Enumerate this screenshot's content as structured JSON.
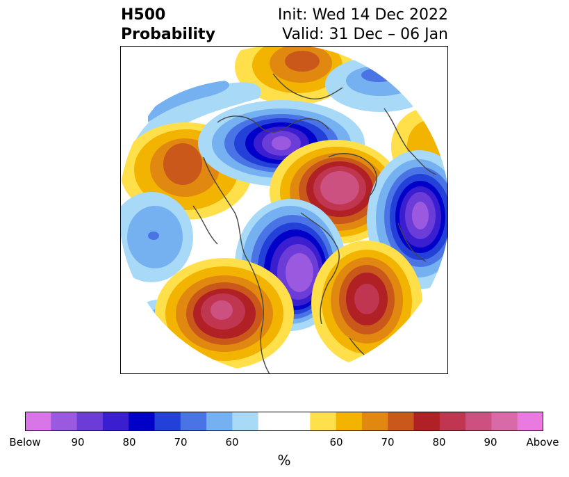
{
  "title": {
    "left_line1": "H500",
    "left_line2": "Probability",
    "right_line1": "Init: Wed 14 Dec 2022",
    "right_line2": "Valid: 31 Dec – 06 Jan"
  },
  "colorbar": {
    "colors": [
      "#d876e8",
      "#9b59e0",
      "#6b3cd8",
      "#3a1ed0",
      "#0000c8",
      "#2340d8",
      "#4a73e6",
      "#75b0f0",
      "#a8daf8",
      "#ffffff",
      "#ffffff",
      "#ffe04a",
      "#f2b400",
      "#e08810",
      "#c9581a",
      "#b02025",
      "#c03550",
      "#cc5080",
      "#d96aa8",
      "#e87ae0"
    ],
    "tick_labels": [
      "Below",
      "90",
      "80",
      "70",
      "60",
      "60",
      "70",
      "80",
      "90",
      "Above"
    ],
    "unit": "%"
  },
  "legend_colors": {
    "below_strong": "#8a4be0",
    "below_mid": "#2a2ad8",
    "below_weak": "#a8daf8",
    "above_weak": "#ffe04a",
    "above_mid": "#e08810",
    "above_strong": "#c03550"
  }
}
